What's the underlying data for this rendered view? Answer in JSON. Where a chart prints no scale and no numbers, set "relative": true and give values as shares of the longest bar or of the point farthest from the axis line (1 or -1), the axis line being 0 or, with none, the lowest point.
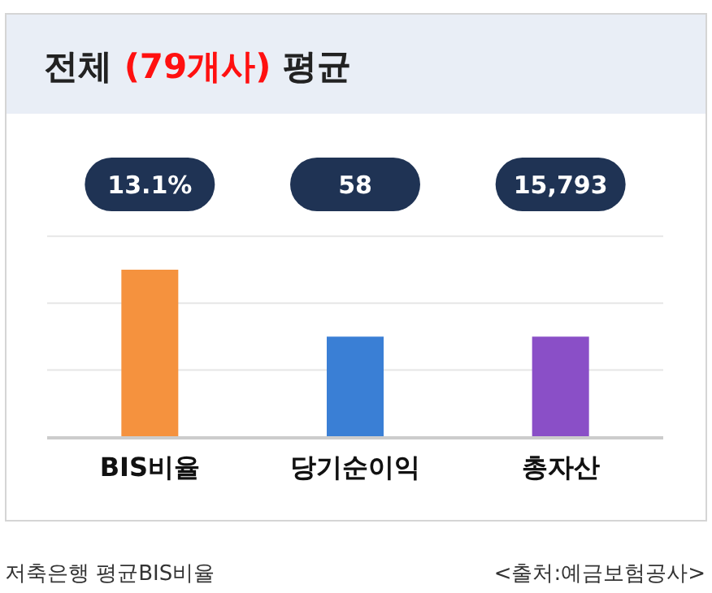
{
  "chart_data": {
    "type": "bar",
    "title": "전체 (79개사) 평균",
    "categories": [
      "BIS비율",
      "당기순이익",
      "총자산"
    ],
    "values": [
      1,
      0.6,
      0.6
    ],
    "colors": [
      "#f5923e",
      "#3a7fd5",
      "#8a4fc7"
    ],
    "relative": true,
    "ref_lines": [
      {
        "axis": "y",
        "value": 0.4,
        "color": "#e6e6e6"
      },
      {
        "axis": "y",
        "value": 0.8,
        "color": "#e6e6e6"
      },
      {
        "axis": "y",
        "value": 1.2,
        "color": "#e6e6e6"
      }
    ],
    "annotations": [
      "13.1%",
      "58",
      "15,793",
      "저축은행 평균BIS비율",
      "<출처:예금보험공사>"
    ]
  }
}
